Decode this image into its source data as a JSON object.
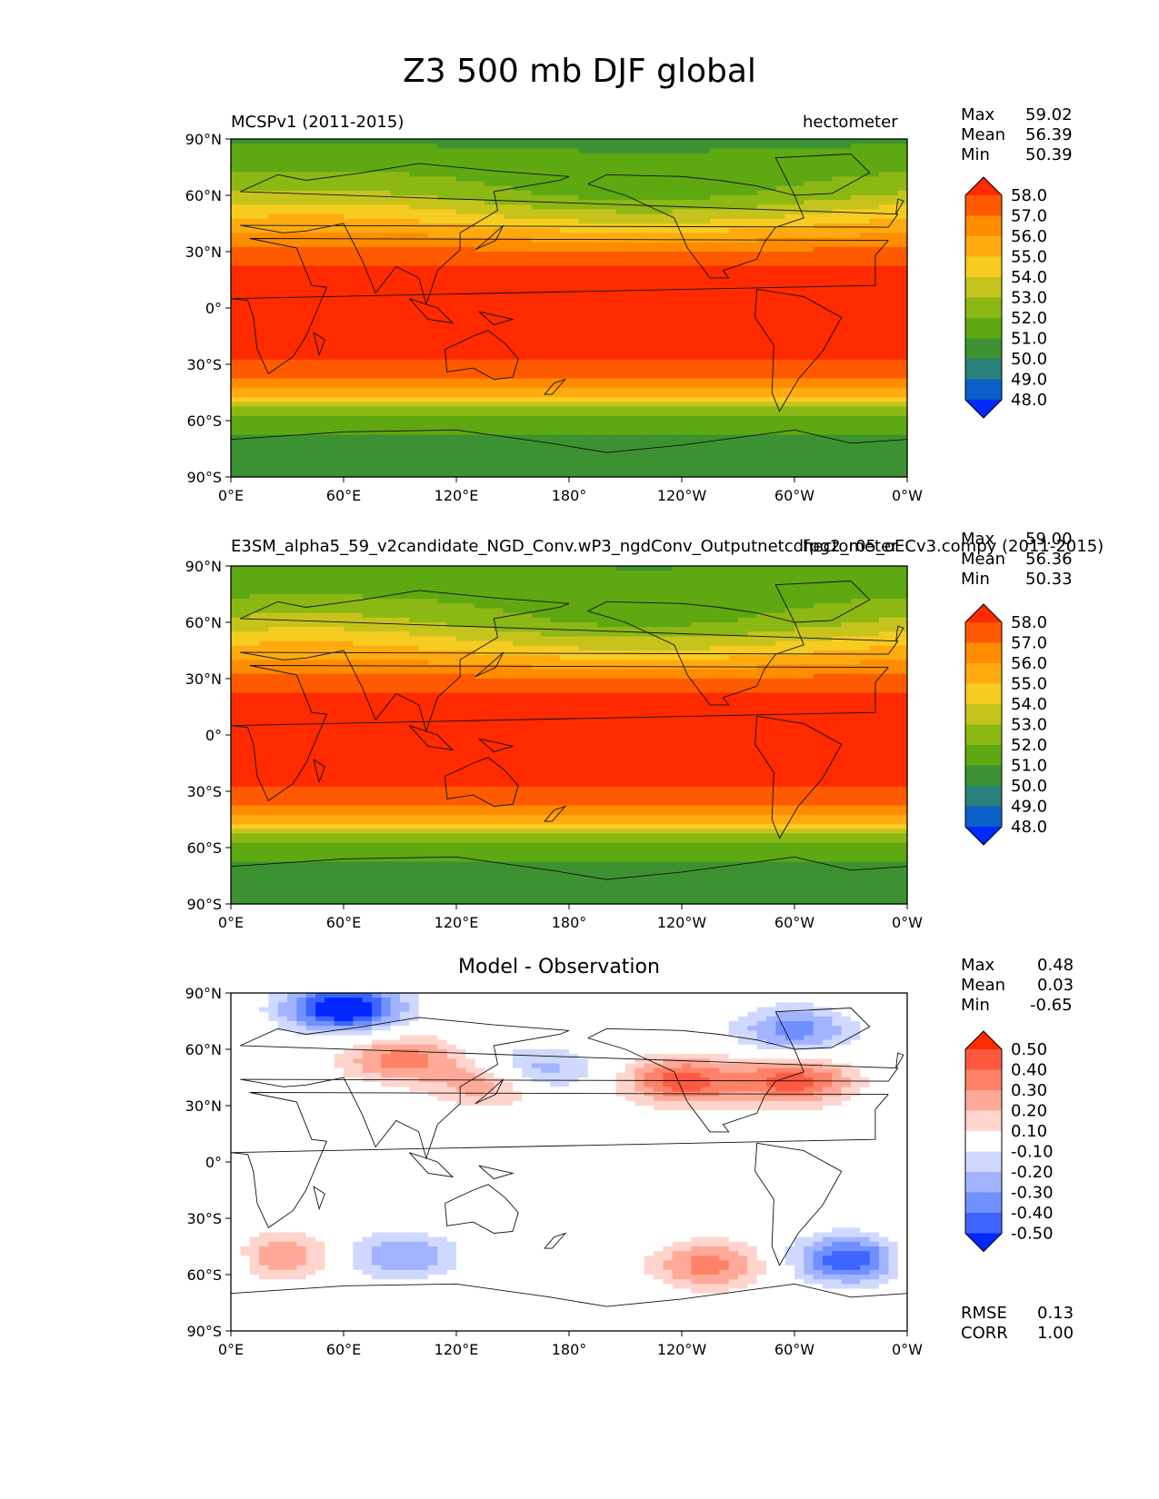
{
  "figure": {
    "title": "Z3 500 mb DJF global"
  },
  "axes": {
    "lat_labels": [
      "90°N",
      "60°N",
      "30°N",
      "0°",
      "30°S",
      "60°S",
      "90°S"
    ],
    "lon_labels": [
      "0°E",
      "60°E",
      "120°E",
      "180°",
      "120°W",
      "60°W",
      "0°W"
    ]
  },
  "panels": [
    {
      "name": "obs",
      "left_title": "MCSPv1 (2011-2015)",
      "right_title": "hectometer",
      "center_title": "",
      "stats": {
        "max_label": "Max",
        "max": "59.02",
        "mean_label": "Mean",
        "mean": "56.39",
        "min_label": "Min",
        "min": "50.39"
      },
      "colorbar": {
        "labels": [
          "58.0",
          "57.0",
          "56.0",
          "55.0",
          "54.0",
          "53.0",
          "52.0",
          "51.0",
          "50.0",
          "49.0",
          "48.0"
        ],
        "colors": [
          "#ff2a00",
          "#ff5a00",
          "#ff8c00",
          "#ffab10",
          "#f7cc20",
          "#c6c41c",
          "#8cb814",
          "#5ea812",
          "#3c9232",
          "#2a807a",
          "#0a60c8",
          "#0028ff"
        ]
      }
    },
    {
      "name": "model",
      "left_title": "E3SM_alpha5_59_v2candidate_NGD_Conv.wP3_ngdConv_Outputnetcdfpg2_r05_oECv3.compy (2011-2015)",
      "right_title": "hectometer",
      "center_title": "",
      "stats": {
        "max_label": "Max",
        "max": "59.00",
        "mean_label": "Mean",
        "mean": "56.36",
        "min_label": "Min",
        "min": "50.33"
      },
      "colorbar": {
        "labels": [
          "58.0",
          "57.0",
          "56.0",
          "55.0",
          "54.0",
          "53.0",
          "52.0",
          "51.0",
          "50.0",
          "49.0",
          "48.0"
        ],
        "colors": [
          "#ff2a00",
          "#ff5a00",
          "#ff8c00",
          "#ffab10",
          "#f7cc20",
          "#c6c41c",
          "#8cb814",
          "#5ea812",
          "#3c9232",
          "#2a807a",
          "#0a60c8",
          "#0028ff"
        ]
      }
    },
    {
      "name": "diff",
      "left_title": "",
      "right_title": "",
      "center_title": "Model - Observation",
      "stats": {
        "max_label": "Max",
        "max": "0.48",
        "mean_label": "Mean",
        "mean": "0.03",
        "min_label": "Min",
        "min": "-0.65"
      },
      "colorbar": {
        "labels": [
          "0.50",
          "0.40",
          "0.30",
          "0.20",
          "0.10",
          "-0.10",
          "-0.20",
          "-0.30",
          "-0.40",
          "-0.50"
        ],
        "colors": [
          "#ff2a00",
          "#ff5a40",
          "#ff8268",
          "#ffaa98",
          "#ffd4cc",
          "#ffffff",
          "#cfd8ff",
          "#a2b4ff",
          "#7090ff",
          "#3e64ff",
          "#0028ff"
        ]
      },
      "extra_stats": {
        "rmse_label": "RMSE",
        "rmse": "0.13",
        "corr_label": "CORR",
        "corr": "1.00"
      }
    }
  ],
  "chart_data": [
    {
      "type": "heatmap",
      "title": "MCSPv1 (2011-2015)",
      "units": "hectometer",
      "x": "longitude",
      "y": "latitude",
      "xlim": [
        0,
        360
      ],
      "ylim": [
        -90,
        90
      ],
      "zonal_profile": {
        "lat": [
          90,
          75,
          60,
          45,
          30,
          20,
          0,
          -20,
          -35,
          -45,
          -55,
          -60,
          -70,
          -90
        ],
        "value": [
          50.8,
          51.5,
          52.5,
          54.8,
          57.2,
          58.2,
          58.6,
          58.3,
          57.6,
          55.5,
          52.6,
          51.5,
          50.8,
          50.6
        ]
      },
      "levels": [
        48,
        49,
        50,
        51,
        52,
        53,
        54,
        55,
        56,
        57,
        58
      ],
      "max": 59.02,
      "mean": 56.39,
      "min": 50.39
    },
    {
      "type": "heatmap",
      "title": "E3SM_alpha5_59_v2candidate_NGD_Conv.wP3_ngdConv_Outputnetcdfpg2_r05_oECv3.compy (2011-2015)",
      "units": "hectometer",
      "x": "longitude",
      "y": "latitude",
      "xlim": [
        0,
        360
      ],
      "ylim": [
        -90,
        90
      ],
      "zonal_profile": {
        "lat": [
          90,
          75,
          60,
          45,
          30,
          20,
          0,
          -20,
          -35,
          -45,
          -55,
          -60,
          -70,
          -90
        ],
        "value": [
          51.0,
          51.6,
          52.6,
          54.8,
          57.2,
          58.2,
          58.6,
          58.3,
          57.6,
          55.5,
          52.6,
          51.5,
          50.8,
          50.6
        ]
      },
      "levels": [
        48,
        49,
        50,
        51,
        52,
        53,
        54,
        55,
        56,
        57,
        58
      ],
      "max": 59.0,
      "mean": 56.36,
      "min": 50.33
    },
    {
      "type": "heatmap",
      "title": "Model - Observation",
      "x": "longitude",
      "y": "latitude",
      "xlim": [
        0,
        360
      ],
      "ylim": [
        -90,
        90
      ],
      "levels": [
        -0.5,
        -0.4,
        -0.3,
        -0.2,
        -0.1,
        0.1,
        0.2,
        0.3,
        0.4,
        0.5
      ],
      "anomalies": [
        {
          "lon": 90,
          "lat": 55,
          "value": 0.35
        },
        {
          "lon": 140,
          "lat": 42,
          "value": 0.35
        },
        {
          "lon": 240,
          "lat": 43,
          "value": 0.45
        },
        {
          "lon": 300,
          "lat": 43,
          "value": 0.45
        },
        {
          "lon": 160,
          "lat": 48,
          "value": -0.35
        },
        {
          "lon": 90,
          "lat": -50,
          "value": -0.3
        },
        {
          "lon": 330,
          "lat": -52,
          "value": -0.5
        },
        {
          "lon": 25,
          "lat": -50,
          "value": 0.3
        },
        {
          "lon": 255,
          "lat": -55,
          "value": 0.35
        },
        {
          "lon": 60,
          "lat": 82,
          "value": -0.65
        },
        {
          "lon": 300,
          "lat": 70,
          "value": -0.35
        }
      ],
      "max": 0.48,
      "mean": 0.03,
      "min": -0.65,
      "rmse": 0.13,
      "corr": 1.0
    }
  ]
}
